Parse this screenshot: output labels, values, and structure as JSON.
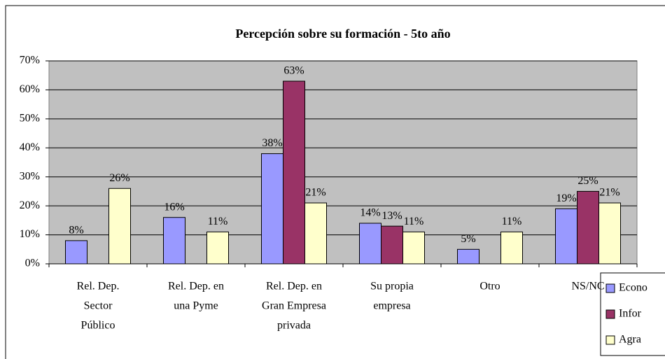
{
  "chart_data": {
    "type": "bar",
    "title": "Percepción sobre su formación - 5to año",
    "categories": [
      [
        "Rel. Dep.",
        "Sector",
        "Público"
      ],
      [
        "Rel. Dep. en",
        "una Pyme"
      ],
      [
        "Rel. Dep. en",
        "Gran Empresa",
        "privada"
      ],
      [
        "Su propia",
        "empresa"
      ],
      [
        "Otro"
      ],
      [
        "NS/NC"
      ]
    ],
    "series": [
      {
        "name": "Econo",
        "color": "#9999ff",
        "values": [
          8,
          16,
          38,
          14,
          5,
          19
        ],
        "value_labels": [
          "8%",
          "16%",
          "38%",
          "14%",
          "5%",
          "19%"
        ]
      },
      {
        "name": "Infor",
        "color": "#993366",
        "values": [
          null,
          null,
          63,
          13,
          null,
          25
        ],
        "value_labels": [
          null,
          null,
          "63%",
          "13%",
          null,
          "25%"
        ]
      },
      {
        "name": "Agra",
        "color": "#ffffcc",
        "values": [
          26,
          11,
          21,
          11,
          11,
          21
        ],
        "value_labels": [
          "26%",
          "11%",
          "21%",
          "11%",
          "11%",
          "21%"
        ]
      }
    ],
    "ylim": [
      0,
      70
    ],
    "yticks": [
      {
        "value": 0,
        "label": "0%"
      },
      {
        "value": 10,
        "label": "10%"
      },
      {
        "value": 20,
        "label": "20%"
      },
      {
        "value": 30,
        "label": "30%"
      },
      {
        "value": 40,
        "label": "40%"
      },
      {
        "value": 50,
        "label": "50%"
      },
      {
        "value": 60,
        "label": "60%"
      },
      {
        "value": 70,
        "label": "70%"
      }
    ],
    "grid": true,
    "legend": "bottom-right"
  }
}
